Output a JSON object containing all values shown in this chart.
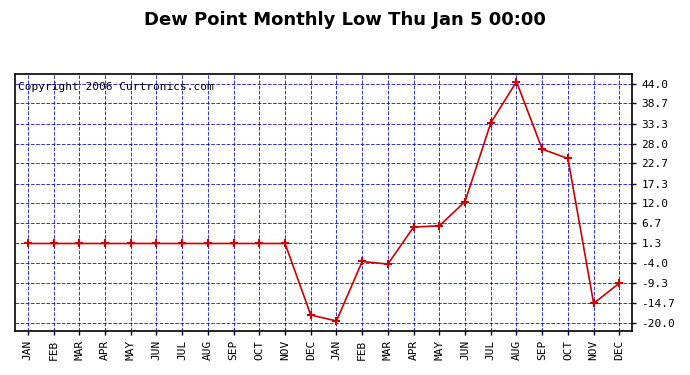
{
  "title": "Dew Point Monthly Low Thu Jan 5 00:00",
  "copyright": "Copyright 2006 Curtronics.com",
  "x_labels": [
    "JAN",
    "FEB",
    "MAR",
    "APR",
    "MAY",
    "JUN",
    "JUL",
    "AUG",
    "SEP",
    "OCT",
    "NOV",
    "DEC",
    "JAN",
    "FEB",
    "MAR",
    "APR",
    "MAY",
    "JUN",
    "JUL",
    "AUG",
    "SEP",
    "OCT",
    "NOV",
    "DEC"
  ],
  "y_values": [
    1.3,
    1.3,
    1.3,
    1.3,
    1.3,
    1.3,
    1.3,
    1.3,
    1.3,
    1.3,
    1.3,
    -17.8,
    -19.4,
    -3.5,
    -4.2,
    5.7,
    6.0,
    12.5,
    33.5,
    44.5,
    26.5,
    24.0,
    -14.7,
    -9.3
  ],
  "y_ticks": [
    44.0,
    38.7,
    33.3,
    28.0,
    22.7,
    17.3,
    12.0,
    6.7,
    1.3,
    -4.0,
    -9.3,
    -14.7,
    -20.0
  ],
  "ylim": [
    -22.0,
    46.5
  ],
  "line_color": "#cc0000",
  "marker_color": "#cc0000",
  "bg_color": "#ffffff",
  "plot_bg_color": "#ffffff",
  "grid_color": "#0000cc",
  "title_fontsize": 13,
  "copyright_fontsize": 8,
  "tick_fontsize": 8
}
